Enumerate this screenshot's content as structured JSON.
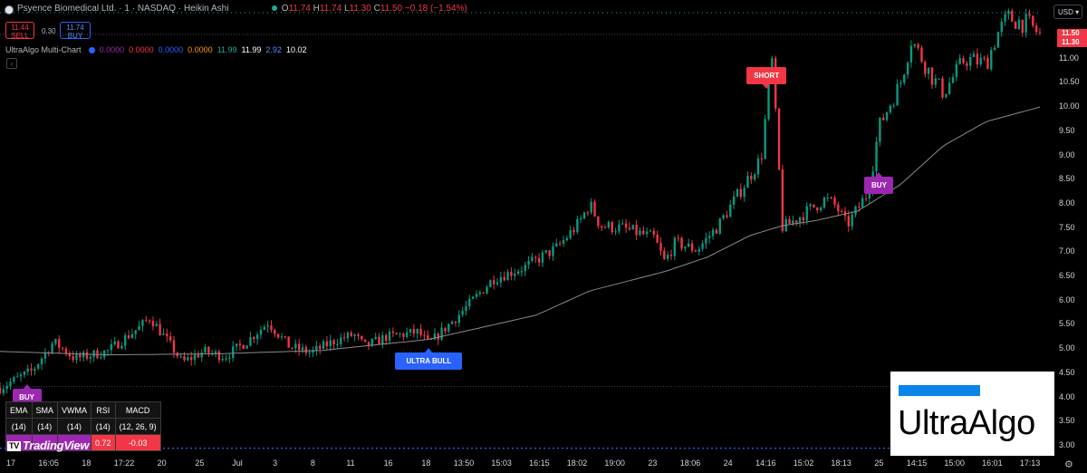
{
  "header": {
    "title": "Psyence Biomedical Ltd. · 1 · NASDAQ · Heikin Ashi",
    "ohlc": [
      {
        "k": "O",
        "v": "11.74"
      },
      {
        "k": "H",
        "v": "11.74"
      },
      {
        "k": "L",
        "v": "11.30"
      },
      {
        "k": "C",
        "v": "11.50"
      }
    ],
    "change": "−0.18 (−1.54%)",
    "sell_price": "11.44",
    "sell_label": "SELL",
    "spread": "0.30",
    "buy_price": "11.74",
    "buy_label": "BUY",
    "currency": "USD"
  },
  "indicator": {
    "name": "UltraAlgo Multi-Chart",
    "values": [
      {
        "v": "0.0000",
        "color": "#9c27b0"
      },
      {
        "v": "0.0000",
        "color": "#f23645"
      },
      {
        "v": "0.0000",
        "color": "#2962ff"
      },
      {
        "v": "0.0000",
        "color": "#ff9800"
      },
      {
        "v": "11.99",
        "color": "#22ab94"
      },
      {
        "v": "11.99",
        "color": "#ffffff"
      },
      {
        "v": "2.92",
        "color": "#5b8cff"
      },
      {
        "v": "10.02",
        "color": "#ffffff"
      }
    ]
  },
  "chart_data": {
    "type": "candlestick",
    "symbol": "Psyence Biomedical Ltd.",
    "ylim": [
      2.85,
      11.95
    ],
    "yticks": [
      3.0,
      3.5,
      4.0,
      4.5,
      5.0,
      5.5,
      6.0,
      6.5,
      7.0,
      7.5,
      8.0,
      8.5,
      9.0,
      9.5,
      10.0,
      10.5,
      11.0
    ],
    "ytick_labels": [
      "3.00",
      "3.50",
      "4.00",
      "4.50",
      "5.00",
      "5.50",
      "6.00",
      "6.50",
      "7.00",
      "7.50",
      "8.00",
      "8.50",
      "9.00",
      "9.50",
      "10.00",
      "10.50",
      "11.00"
    ],
    "xticks": [
      "17",
      "16:05",
      "18",
      "17:22",
      "20",
      "25",
      "Jul",
      "3",
      "8",
      "11",
      "16",
      "18",
      "13:50",
      "15:03",
      "16:15",
      "18:02",
      "19:00",
      "23",
      "18:06",
      "24",
      "14:16",
      "15:02",
      "18:13",
      "25",
      "14:15",
      "15:00",
      "16:01",
      "17:13"
    ],
    "price_path": [
      [
        0,
        4.2
      ],
      [
        3,
        4.55
      ],
      [
        5,
        5.15
      ],
      [
        7,
        4.8
      ],
      [
        10,
        4.95
      ],
      [
        13,
        5.45
      ],
      [
        14,
        5.65
      ],
      [
        16,
        5.05
      ],
      [
        17,
        4.72
      ],
      [
        19,
        4.95
      ],
      [
        21,
        4.85
      ],
      [
        23,
        5.15
      ],
      [
        25,
        5.55
      ],
      [
        27,
        5.05
      ],
      [
        29,
        4.92
      ],
      [
        31,
        5.15
      ],
      [
        33,
        5.3
      ],
      [
        34,
        5.05
      ],
      [
        36,
        5.25
      ],
      [
        39,
        5.35
      ],
      [
        40,
        5.1
      ],
      [
        43,
        5.75
      ],
      [
        46,
        6.45
      ],
      [
        49,
        6.7
      ],
      [
        52,
        7.1
      ],
      [
        54,
        7.6
      ],
      [
        55,
        8.0
      ],
      [
        56,
        7.55
      ],
      [
        58,
        7.5
      ],
      [
        61,
        7.3
      ],
      [
        62,
        6.8
      ],
      [
        63,
        7.2
      ],
      [
        65,
        7.05
      ],
      [
        67,
        7.55
      ],
      [
        69,
        8.25
      ],
      [
        71,
        8.95
      ],
      [
        72,
        11.0
      ],
      [
        73,
        7.5
      ],
      [
        75,
        7.8
      ],
      [
        77,
        8.1
      ],
      [
        78,
        7.95
      ],
      [
        79,
        7.55
      ],
      [
        81,
        8.25
      ],
      [
        82,
        9.6
      ],
      [
        84,
        10.5
      ],
      [
        85,
        11.4
      ],
      [
        87,
        10.6
      ],
      [
        88,
        10.3
      ],
      [
        90,
        11.0
      ],
      [
        92,
        10.9
      ],
      [
        93,
        11.5
      ],
      [
        94,
        11.85
      ],
      [
        96,
        11.7
      ],
      [
        97,
        11.5
      ]
    ],
    "ma_path": [
      [
        0,
        4.95
      ],
      [
        10,
        4.88
      ],
      [
        20,
        4.9
      ],
      [
        30,
        4.97
      ],
      [
        40,
        5.2
      ],
      [
        50,
        5.7
      ],
      [
        55,
        6.2
      ],
      [
        62,
        6.6
      ],
      [
        66,
        6.9
      ],
      [
        70,
        7.35
      ],
      [
        73,
        7.55
      ],
      [
        76,
        7.65
      ],
      [
        80,
        7.85
      ],
      [
        84,
        8.4
      ],
      [
        88,
        9.2
      ],
      [
        92,
        9.7
      ],
      [
        97,
        10.0
      ]
    ],
    "last_close": 11.5,
    "current_labels": [
      "11.50",
      "11.30"
    ],
    "annotations": [
      {
        "label": "BUY",
        "x": 2.5,
        "price": 4.3,
        "side": "above",
        "color": "#9c27b0"
      },
      {
        "label": "ULTRA BULL",
        "x": 40,
        "price": 5.05,
        "side": "above",
        "color": "#2962ff"
      },
      {
        "label": "SHORT",
        "x": 71.5,
        "price": 10.35,
        "side": "below",
        "color": "#f23645"
      },
      {
        "label": "BUY",
        "x": 82,
        "price": 8.68,
        "side": "above",
        "color": "#9c27b0"
      }
    ],
    "reference_lines": [
      11.5,
      4.23,
      2.95
    ]
  },
  "table": {
    "headers": [
      "EMA",
      "SMA",
      "VWMA",
      "RSI",
      "MACD"
    ],
    "params": [
      "(14)",
      "(14)",
      "(14)",
      "(14)",
      "(12, 26, 9)"
    ],
    "values": [
      "",
      "",
      "",
      "0.72",
      "-0.03"
    ]
  },
  "branding": {
    "tradingview": "TradingView",
    "logo_text": "UltraAlgo"
  },
  "colors": {
    "up": "#089981",
    "down": "#f23645",
    "ma": "#8a8a8a",
    "purple": "#9c27b0",
    "blue": "#2962ff",
    "red": "#f23645"
  }
}
